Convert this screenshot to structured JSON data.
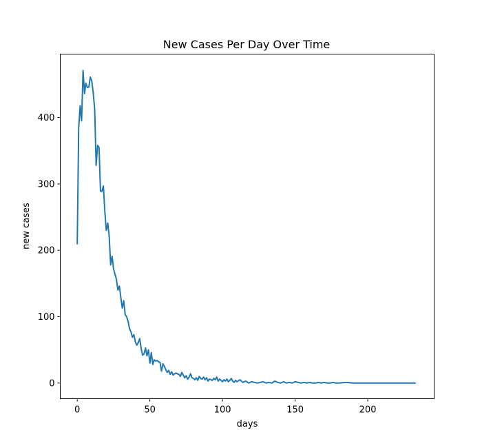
{
  "chart_data": {
    "type": "line",
    "title": "New Cases Per Day Over Time",
    "xlabel": "days",
    "ylabel": "new cases",
    "xlim": [
      -11.7,
      245.7
    ],
    "ylim": [
      -23.6,
      495.6
    ],
    "x_ticks": [
      0,
      50,
      100,
      150,
      200
    ],
    "y_ticks": [
      0,
      100,
      200,
      300,
      400
    ],
    "grid": false,
    "legend": "none",
    "colors": {
      "line": "#1f77b4",
      "axes": "#000000",
      "background": "#ffffff"
    },
    "series": [
      {
        "x": [
          0,
          1,
          2,
          3,
          4,
          5,
          6,
          7,
          8,
          9,
          10,
          11,
          12,
          13,
          14,
          15,
          16,
          17,
          18,
          19,
          20,
          21,
          22,
          23,
          24,
          25,
          26,
          27,
          28,
          29,
          30,
          31,
          32,
          33,
          34,
          35,
          36,
          37,
          38,
          39,
          40,
          41,
          42,
          43,
          44,
          45,
          46,
          47,
          48,
          49,
          50,
          51,
          52,
          53,
          54,
          55,
          56,
          57,
          58,
          59,
          60,
          61,
          62,
          63,
          64,
          65,
          66,
          67,
          68,
          69,
          70,
          71,
          72,
          73,
          74,
          75,
          76,
          77,
          78,
          79,
          80,
          81,
          82,
          83,
          84,
          85,
          86,
          87,
          88,
          89,
          90,
          91,
          92,
          93,
          94,
          95,
          96,
          97,
          98,
          99,
          100,
          101,
          102,
          103,
          104,
          105,
          106,
          107,
          108,
          109,
          110,
          112,
          114,
          116,
          118,
          120,
          122,
          124,
          126,
          128,
          130,
          132,
          134,
          136,
          138,
          140,
          142,
          144,
          146,
          148,
          150,
          152,
          154,
          156,
          158,
          160,
          162,
          164,
          166,
          168,
          170,
          172,
          174,
          176,
          178,
          180,
          185,
          190,
          195,
          200,
          205,
          210,
          215,
          220,
          225,
          230,
          233
        ],
        "values": [
          209,
          385,
          418,
          395,
          471,
          436,
          452,
          445,
          446,
          461,
          455,
          437,
          413,
          328,
          358,
          355,
          289,
          289,
          297,
          258,
          230,
          241,
          221,
          178,
          191,
          172,
          164,
          156,
          140,
          146,
          129,
          113,
          124,
          103,
          100,
          93,
          82,
          77,
          69,
          73,
          62,
          57,
          61,
          67,
          52,
          42,
          44,
          53,
          41,
          50,
          30,
          46,
          28,
          35,
          33,
          34,
          32,
          31,
          18,
          29,
          25,
          20,
          16,
          19,
          13,
          17,
          12,
          14,
          15,
          14,
          13,
          10,
          16,
          12,
          8,
          11,
          6,
          9,
          14,
          8,
          7,
          5,
          8,
          4,
          10,
          7,
          6,
          9,
          5,
          8,
          3,
          6,
          5,
          4,
          7,
          5,
          9,
          3,
          6,
          4,
          2,
          5,
          3,
          6,
          2,
          4,
          7,
          3,
          1,
          4,
          2,
          5,
          1,
          3,
          0,
          2,
          1,
          0,
          1,
          2,
          0,
          1,
          0,
          3,
          1,
          0,
          2,
          0,
          1,
          0,
          2,
          1,
          0,
          1,
          0,
          1,
          0,
          0,
          1,
          0,
          1,
          0,
          0,
          1,
          0,
          0,
          1,
          0,
          0,
          0,
          0,
          0,
          0,
          0,
          0,
          0,
          0
        ]
      }
    ]
  }
}
